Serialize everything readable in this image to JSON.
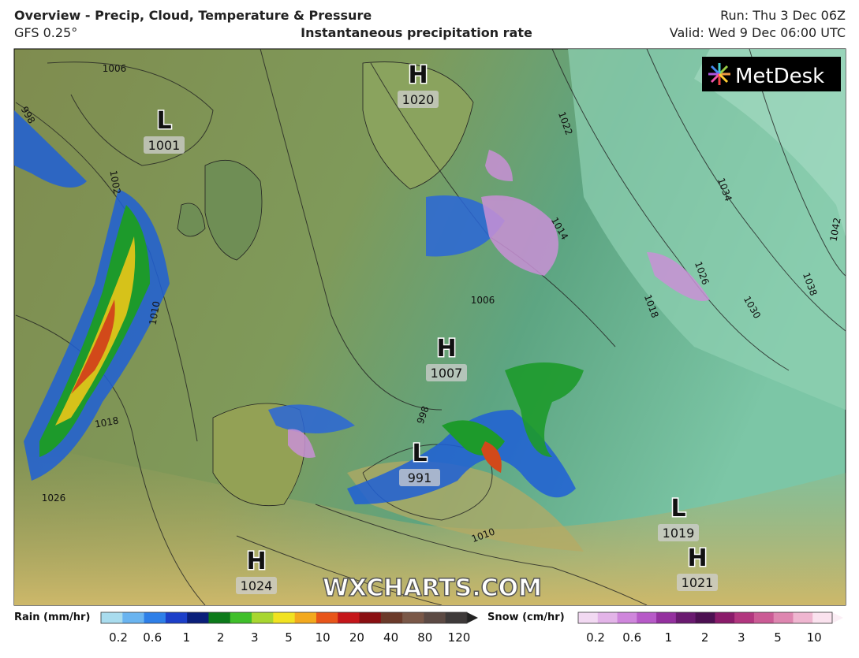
{
  "header": {
    "title": "Overview - Precip, Cloud, Temperature & Pressure",
    "model": "GFS 0.25°",
    "subtitle": "Instantaneous precipitation rate",
    "run": "Run: Thu 3 Dec 06Z",
    "valid": "Valid: Wed 9 Dec 06:00 UTC"
  },
  "logo": "MetDesk",
  "watermark": "WXCHARTS.COM",
  "pressure_centers": [
    {
      "letter": "H",
      "value": 1020
    },
    {
      "letter": "L",
      "value": 1001
    },
    {
      "letter": "H",
      "value": 1007
    },
    {
      "letter": "L",
      "value": 991
    },
    {
      "letter": "H",
      "value": 1024
    },
    {
      "letter": "L",
      "value": 1019
    },
    {
      "letter": "H",
      "value": 1021
    }
  ],
  "isobar_labels": [
    1006,
    998,
    1002,
    1010,
    1018,
    1026,
    1022,
    1014,
    1006,
    1018,
    1026,
    1034,
    1042,
    1038,
    1030,
    1010,
    998
  ],
  "legend": {
    "rain": {
      "title": "Rain (mm/hr)",
      "ticks": [
        0.2,
        0.6,
        1,
        2,
        3,
        5,
        10,
        20,
        40,
        80,
        120
      ]
    },
    "snow": {
      "title": "Snow (cm/hr)",
      "ticks": [
        0.2,
        0.6,
        1,
        2,
        3,
        5,
        10
      ]
    }
  }
}
